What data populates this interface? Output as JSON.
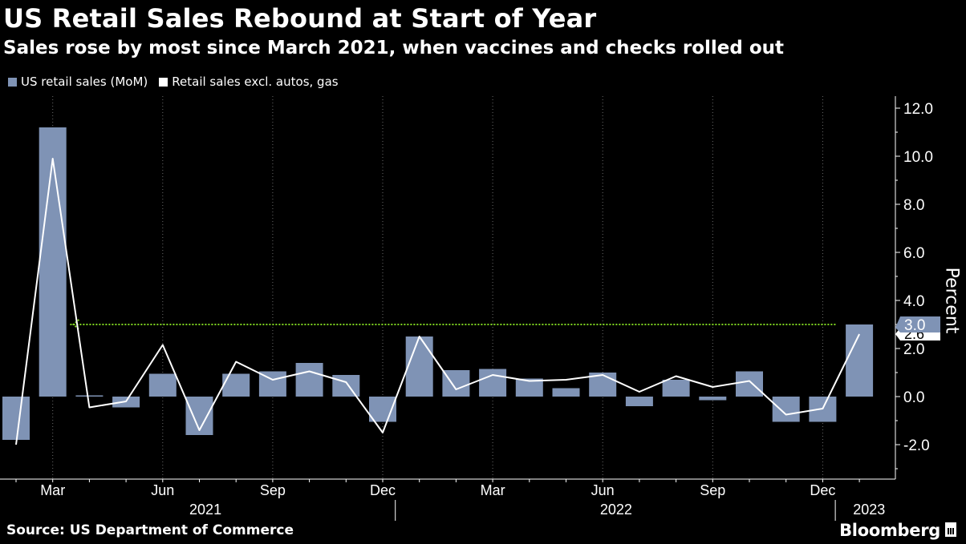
{
  "title": "US Retail Sales Rebound at Start of Year",
  "subtitle": "Sales rose by most since March 2021, when vaccines and checks rolled out",
  "legend": {
    "series1": "US retail sales (MoM)",
    "series2": "Retail sales excl. autos, gas"
  },
  "colors": {
    "bar": "#7f93b5",
    "line": "#ffffff",
    "reference": "#7ed321",
    "background": "#000000",
    "grid": "#6b6b6b"
  },
  "source": "Source: US Department of Commerce",
  "brand": "Bloomberg",
  "chart_data": {
    "type": "bar",
    "ylabel": "Percent",
    "ylim": [
      -3.4,
      12.5
    ],
    "yticks": [
      "-2.0",
      "0.0",
      "2.0",
      "4.0",
      "6.0",
      "8.0",
      "10.0",
      "12.0"
    ],
    "grid": "vertical dotted at quarter months",
    "x_month_labels": [
      "Mar",
      "Jun",
      "Sep",
      "Dec",
      "Mar",
      "Jun",
      "Sep",
      "Dec"
    ],
    "x_year_labels": [
      "2021",
      "2022",
      "2023"
    ],
    "categories": [
      "2021-02",
      "2021-03",
      "2021-04",
      "2021-05",
      "2021-06",
      "2021-07",
      "2021-08",
      "2021-09",
      "2021-10",
      "2021-11",
      "2021-12",
      "2022-01",
      "2022-02",
      "2022-03",
      "2022-04",
      "2022-05",
      "2022-06",
      "2022-07",
      "2022-08",
      "2022-09",
      "2022-10",
      "2022-11",
      "2022-12",
      "2023-01"
    ],
    "series": [
      {
        "name": "US retail sales (MoM)",
        "type": "bar",
        "values": [
          -1.8,
          11.2,
          0.05,
          -0.45,
          0.95,
          -1.6,
          0.95,
          1.05,
          1.4,
          0.9,
          -1.05,
          2.5,
          1.1,
          1.15,
          0.75,
          0.35,
          1.0,
          -0.4,
          0.7,
          -0.15,
          1.05,
          -1.05,
          -1.05,
          3.0
        ]
      },
      {
        "name": "Retail sales excl. autos, gas",
        "type": "line",
        "values": [
          -2.0,
          9.9,
          -0.45,
          -0.2,
          2.15,
          -1.4,
          1.45,
          0.7,
          1.05,
          0.6,
          -1.5,
          2.5,
          0.3,
          0.9,
          0.65,
          0.7,
          0.9,
          0.2,
          0.85,
          0.4,
          0.65,
          -0.75,
          -0.5,
          2.6
        ]
      }
    ],
    "reference_line": {
      "value": 3.0
    },
    "last_value_labels": [
      "3.0",
      "2.6"
    ]
  }
}
